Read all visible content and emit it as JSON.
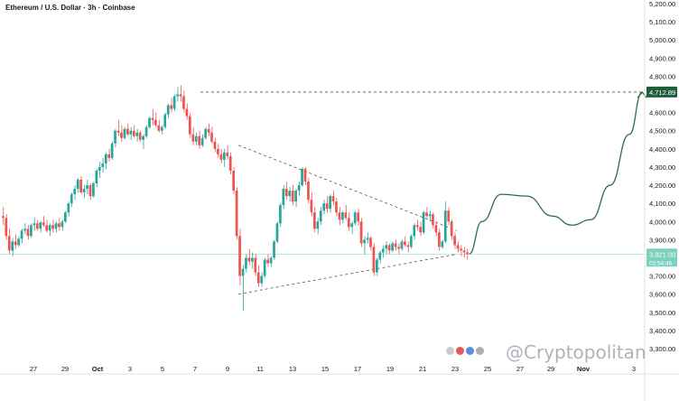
{
  "header": {
    "title": "Ethereum / U.S. Dollar · 3h · Coinbase"
  },
  "watermark": {
    "text": "@Cryptopolitan"
  },
  "chart_data": {
    "type": "candlestick",
    "title": "Ethereum / U.S. Dollar · 3h · Coinbase",
    "ylim": [
      3200,
      5200
    ],
    "y_ticks": [
      3300,
      3400,
      3500,
      3600,
      3700,
      3800,
      3900,
      4000,
      4100,
      4200,
      4300,
      4400,
      4500,
      4600,
      4700,
      4800,
      4900,
      5000,
      5100,
      5200
    ],
    "y_tick_labels": [
      "3,300.00",
      "3,400.00",
      "3,500.00",
      "3,600.00",
      "3,700.00",
      "3,800.00",
      "3,900.00",
      "4,000.00",
      "4,100.00",
      "4,200.00",
      "4,300.00",
      "4,400.00",
      "4,500.00",
      "4,600.00",
      "4,700.00",
      "4,800.00",
      "4,900.00",
      "5,000.00",
      "5,100.00",
      "5,200.00"
    ],
    "x_tick_labels": [
      "27",
      "29",
      "Oct",
      "3",
      "5",
      "7",
      "9",
      "11",
      "13",
      "15",
      "17",
      "19",
      "21",
      "23",
      "25",
      "27",
      "29",
      "Nov",
      "3"
    ],
    "price_tags": {
      "target": {
        "label": "4,712.89",
        "value": 4712.89,
        "color": "#1e5e3b"
      },
      "current": {
        "label": "3,821.00",
        "countdown": "02:54:46",
        "value": 3821,
        "color": "#7bd1bd"
      }
    },
    "candles": [
      [
        4030,
        4080,
        3980,
        4020
      ],
      [
        4020,
        4040,
        3900,
        3920
      ],
      [
        3920,
        3960,
        3820,
        3840
      ],
      [
        3840,
        3910,
        3810,
        3890
      ],
      [
        3890,
        3930,
        3850,
        3870
      ],
      [
        3870,
        3920,
        3860,
        3905
      ],
      [
        3905,
        3960,
        3880,
        3950
      ],
      [
        3950,
        3990,
        3930,
        3960
      ],
      [
        3960,
        3980,
        3900,
        3920
      ],
      [
        3920,
        3990,
        3910,
        3980
      ],
      [
        3980,
        4020,
        3950,
        3990
      ],
      [
        3990,
        4010,
        3950,
        3960
      ],
      [
        3960,
        4000,
        3940,
        3995
      ],
      [
        3995,
        4030,
        3970,
        3980
      ],
      [
        3980,
        4010,
        3940,
        3950
      ],
      [
        3950,
        3990,
        3920,
        3980
      ],
      [
        3980,
        4010,
        3940,
        3960
      ],
      [
        3960,
        4000,
        3940,
        3990
      ],
      [
        3990,
        4020,
        3950,
        3970
      ],
      [
        3970,
        4010,
        3950,
        4000
      ],
      [
        4000,
        4060,
        3990,
        4050
      ],
      [
        4050,
        4110,
        4030,
        4100
      ],
      [
        4100,
        4160,
        4080,
        4150
      ],
      [
        4150,
        4200,
        4120,
        4180
      ],
      [
        4180,
        4240,
        4160,
        4230
      ],
      [
        4230,
        4250,
        4150,
        4160
      ],
      [
        4160,
        4200,
        4130,
        4180
      ],
      [
        4180,
        4230,
        4150,
        4200
      ],
      [
        4200,
        4210,
        4120,
        4140
      ],
      [
        4140,
        4220,
        4130,
        4210
      ],
      [
        4210,
        4290,
        4190,
        4280
      ],
      [
        4280,
        4330,
        4240,
        4300
      ],
      [
        4300,
        4350,
        4270,
        4320
      ],
      [
        4320,
        4380,
        4290,
        4370
      ],
      [
        4370,
        4400,
        4330,
        4350
      ],
      [
        4350,
        4440,
        4340,
        4430
      ],
      [
        4430,
        4510,
        4410,
        4500
      ],
      [
        4500,
        4560,
        4470,
        4490
      ],
      [
        4490,
        4530,
        4440,
        4460
      ],
      [
        4460,
        4520,
        4450,
        4510
      ],
      [
        4510,
        4540,
        4470,
        4480
      ],
      [
        4480,
        4520,
        4450,
        4500
      ],
      [
        4500,
        4530,
        4460,
        4470
      ],
      [
        4470,
        4510,
        4440,
        4490
      ],
      [
        4490,
        4500,
        4440,
        4450
      ],
      [
        4450,
        4480,
        4400,
        4470
      ],
      [
        4470,
        4530,
        4460,
        4520
      ],
      [
        4520,
        4580,
        4510,
        4570
      ],
      [
        4570,
        4620,
        4530,
        4560
      ],
      [
        4560,
        4600,
        4520,
        4530
      ],
      [
        4530,
        4560,
        4490,
        4500
      ],
      [
        4500,
        4530,
        4480,
        4520
      ],
      [
        4520,
        4600,
        4510,
        4590
      ],
      [
        4590,
        4650,
        4570,
        4640
      ],
      [
        4640,
        4680,
        4600,
        4620
      ],
      [
        4620,
        4700,
        4610,
        4690
      ],
      [
        4690,
        4740,
        4660,
        4700
      ],
      [
        4700,
        4750,
        4660,
        4690
      ],
      [
        4690,
        4720,
        4600,
        4620
      ],
      [
        4620,
        4650,
        4560,
        4580
      ],
      [
        4580,
        4600,
        4460,
        4480
      ],
      [
        4480,
        4520,
        4420,
        4440
      ],
      [
        4440,
        4490,
        4420,
        4470
      ],
      [
        4470,
        4500,
        4400,
        4420
      ],
      [
        4420,
        4480,
        4410,
        4460
      ],
      [
        4460,
        4520,
        4450,
        4510
      ],
      [
        4510,
        4540,
        4470,
        4490
      ],
      [
        4490,
        4520,
        4430,
        4440
      ],
      [
        4440,
        4460,
        4380,
        4400
      ],
      [
        4400,
        4430,
        4350,
        4370
      ],
      [
        4370,
        4400,
        4320,
        4340
      ],
      [
        4340,
        4400,
        4300,
        4380
      ],
      [
        4380,
        4420,
        4340,
        4360
      ],
      [
        4360,
        4380,
        4260,
        4280
      ],
      [
        4280,
        4300,
        4150,
        4170
      ],
      [
        4170,
        4190,
        3900,
        3920
      ],
      [
        3920,
        3960,
        3650,
        3700
      ],
      [
        3700,
        3760,
        3510,
        3740
      ],
      [
        3740,
        3820,
        3720,
        3800
      ],
      [
        3800,
        3850,
        3760,
        3780
      ],
      [
        3780,
        3830,
        3740,
        3800
      ],
      [
        3800,
        3820,
        3700,
        3720
      ],
      [
        3720,
        3760,
        3640,
        3660
      ],
      [
        3660,
        3720,
        3640,
        3700
      ],
      [
        3700,
        3800,
        3690,
        3790
      ],
      [
        3790,
        3820,
        3750,
        3770
      ],
      [
        3770,
        3810,
        3750,
        3800
      ],
      [
        3800,
        3900,
        3790,
        3890
      ],
      [
        3890,
        4000,
        3880,
        3990
      ],
      [
        3990,
        4100,
        3970,
        4090
      ],
      [
        4090,
        4200,
        4070,
        4180
      ],
      [
        4180,
        4220,
        4120,
        4140
      ],
      [
        4140,
        4190,
        4110,
        4170
      ],
      [
        4170,
        4200,
        4090,
        4110
      ],
      [
        4110,
        4180,
        4080,
        4170
      ],
      [
        4170,
        4220,
        4140,
        4200
      ],
      [
        4200,
        4300,
        4190,
        4290
      ],
      [
        4290,
        4300,
        4200,
        4220
      ],
      [
        4220,
        4240,
        4100,
        4120
      ],
      [
        4120,
        4160,
        4030,
        4050
      ],
      [
        4050,
        4080,
        3940,
        3960
      ],
      [
        3960,
        4020,
        3930,
        4000
      ],
      [
        4000,
        4080,
        3980,
        4060
      ],
      [
        4060,
        4120,
        4040,
        4100
      ],
      [
        4100,
        4140,
        4050,
        4070
      ],
      [
        4070,
        4150,
        4050,
        4140
      ],
      [
        4140,
        4170,
        4090,
        4110
      ],
      [
        4110,
        4130,
        4030,
        4050
      ],
      [
        4050,
        4080,
        3980,
        4010
      ],
      [
        4010,
        4060,
        3990,
        4050
      ],
      [
        4050,
        4090,
        4010,
        4020
      ],
      [
        4020,
        4050,
        3950,
        3970
      ],
      [
        3970,
        4000,
        3930,
        3990
      ],
      [
        3990,
        4060,
        3980,
        4050
      ],
      [
        4050,
        4070,
        3980,
        4000
      ],
      [
        4000,
        4020,
        3860,
        3880
      ],
      [
        3880,
        3920,
        3820,
        3900
      ],
      [
        3900,
        3940,
        3880,
        3910
      ],
      [
        3910,
        3920,
        3840,
        3860
      ],
      [
        3860,
        3880,
        3700,
        3720
      ],
      [
        3720,
        3800,
        3700,
        3790
      ],
      [
        3790,
        3840,
        3770,
        3830
      ],
      [
        3830,
        3870,
        3800,
        3850
      ],
      [
        3850,
        3890,
        3820,
        3870
      ],
      [
        3870,
        3880,
        3820,
        3840
      ],
      [
        3840,
        3890,
        3830,
        3880
      ],
      [
        3880,
        3900,
        3840,
        3860
      ],
      [
        3860,
        3880,
        3820,
        3850
      ],
      [
        3850,
        3900,
        3840,
        3890
      ],
      [
        3890,
        3920,
        3860,
        3870
      ],
      [
        3870,
        3890,
        3830,
        3860
      ],
      [
        3860,
        3930,
        3850,
        3920
      ],
      [
        3920,
        3990,
        3900,
        3980
      ],
      [
        3980,
        4010,
        3950,
        3970
      ],
      [
        3970,
        4000,
        3920,
        3940
      ],
      [
        3940,
        4060,
        3930,
        4050
      ],
      [
        4050,
        4080,
        4020,
        4030
      ],
      [
        4030,
        4060,
        4000,
        4040
      ],
      [
        4040,
        4050,
        3960,
        3980
      ],
      [
        3980,
        4000,
        3920,
        3940
      ],
      [
        3940,
        3960,
        3840,
        3860
      ],
      [
        3860,
        3900,
        3850,
        3890
      ],
      [
        3890,
        4110,
        3880,
        4060
      ],
      [
        4060,
        4080,
        3980,
        4000
      ],
      [
        4000,
        4010,
        3900,
        3920
      ],
      [
        3920,
        3940,
        3850,
        3870
      ],
      [
        3870,
        3890,
        3830,
        3850
      ],
      [
        3850,
        3870,
        3810,
        3840
      ],
      [
        3840,
        3860,
        3800,
        3830
      ],
      [
        3830,
        3850,
        3790,
        3821
      ]
    ],
    "projection": [
      [
        0,
        3821
      ],
      [
        4,
        4000
      ],
      [
        10,
        4150
      ],
      [
        18,
        4140
      ],
      [
        26,
        4030
      ],
      [
        32,
        3980
      ],
      [
        38,
        4010
      ],
      [
        44,
        4200
      ],
      [
        50,
        4480
      ],
      [
        54,
        4712
      ]
    ],
    "trendlines": {
      "upper": [
        [
          76,
          4420
        ],
        [
          146,
          3950
        ]
      ],
      "lower": [
        [
          76,
          3600
        ],
        [
          146,
          3820
        ]
      ]
    }
  }
}
